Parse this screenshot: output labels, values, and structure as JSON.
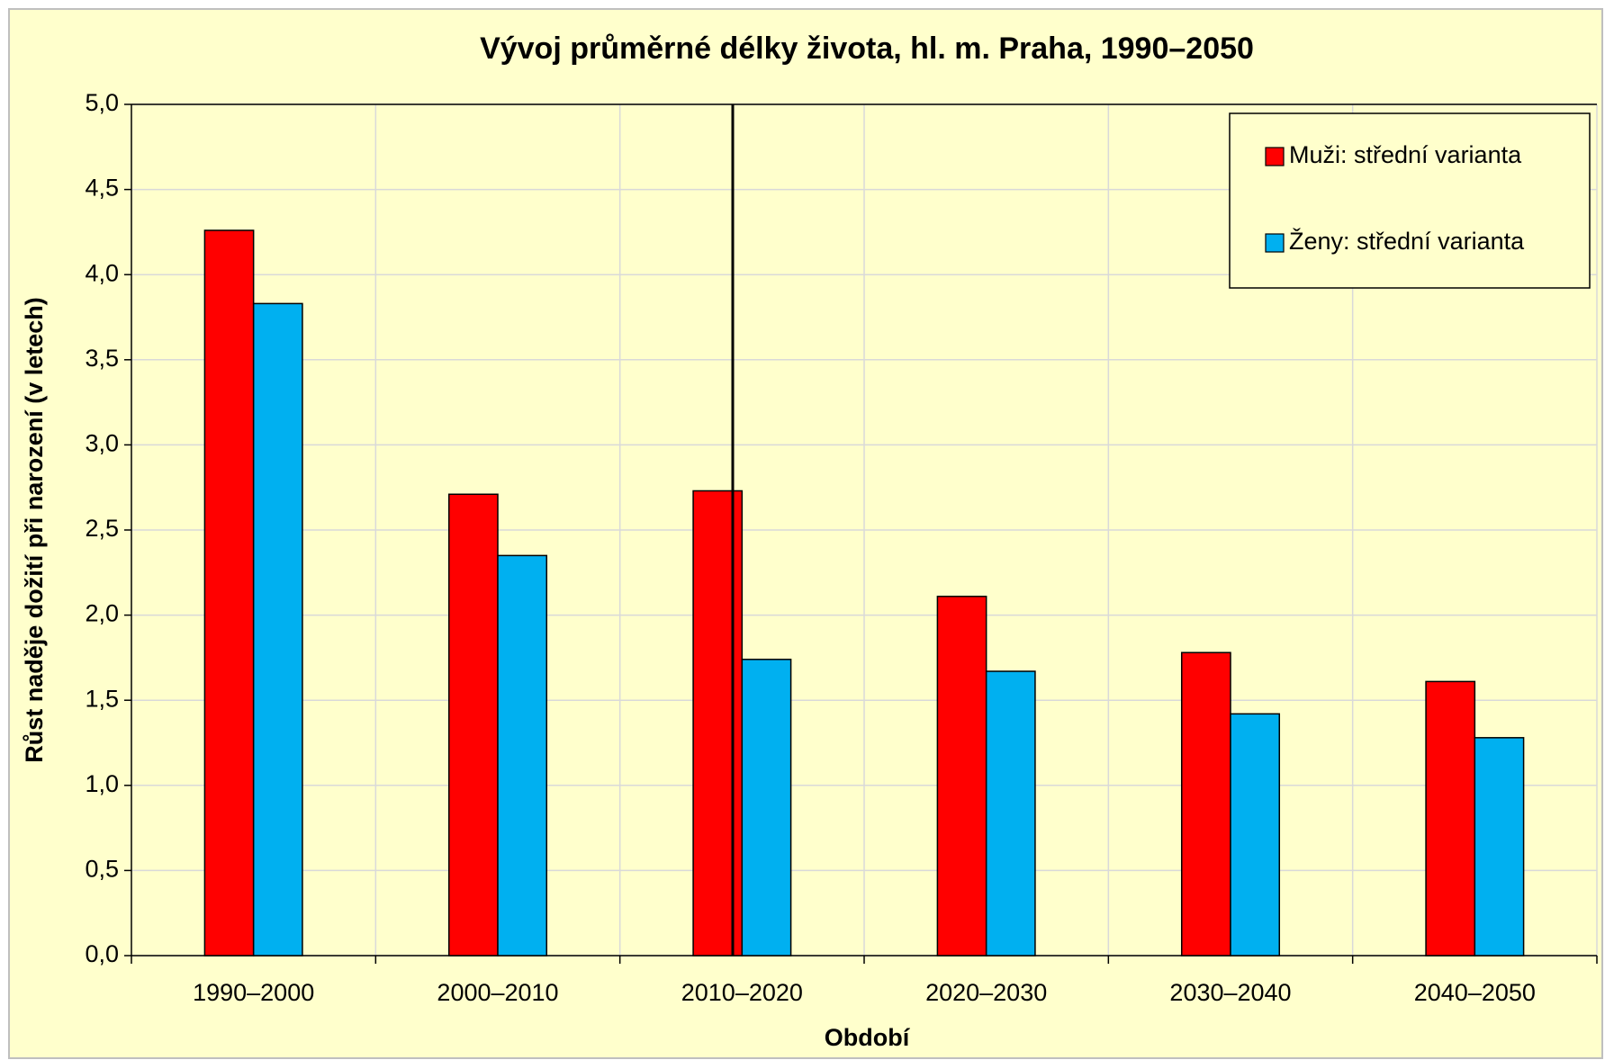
{
  "chart_data": {
    "type": "bar",
    "title": "Vývoj průměrné délky života, hl. m. Praha, 1990–2050",
    "x_label": "Období",
    "y_label": "Růst naděje dožití při narození (v letech)",
    "categories": [
      "1990–2000",
      "2000–2010",
      "2010–2020",
      "2020–2030",
      "2030–2040",
      "2040–2050"
    ],
    "series": [
      {
        "name": "Muži: střední varianta",
        "color": "#ff0000",
        "values": [
          4.26,
          2.71,
          2.73,
          2.11,
          1.78,
          1.61
        ]
      },
      {
        "name": "Ženy: střední varianta",
        "color": "#00b0f0",
        "values": [
          3.83,
          2.35,
          1.74,
          1.67,
          1.42,
          1.28
        ]
      }
    ],
    "ylim": [
      0,
      5
    ],
    "yticks": [
      {
        "value": 0,
        "label": "0,0"
      },
      {
        "value": 0.5,
        "label": "0,5"
      },
      {
        "value": 1,
        "label": "1,0"
      },
      {
        "value": 1.5,
        "label": "1,5"
      },
      {
        "value": 2,
        "label": "2,0"
      },
      {
        "value": 2.5,
        "label": "2,5"
      },
      {
        "value": 3,
        "label": "3,0"
      },
      {
        "value": 3.5,
        "label": "3,5"
      },
      {
        "value": 4,
        "label": "4,0"
      },
      {
        "value": 4.5,
        "label": "4,5"
      },
      {
        "value": 5,
        "label": "5,0"
      }
    ],
    "grid": true,
    "legend": "upper right"
  }
}
